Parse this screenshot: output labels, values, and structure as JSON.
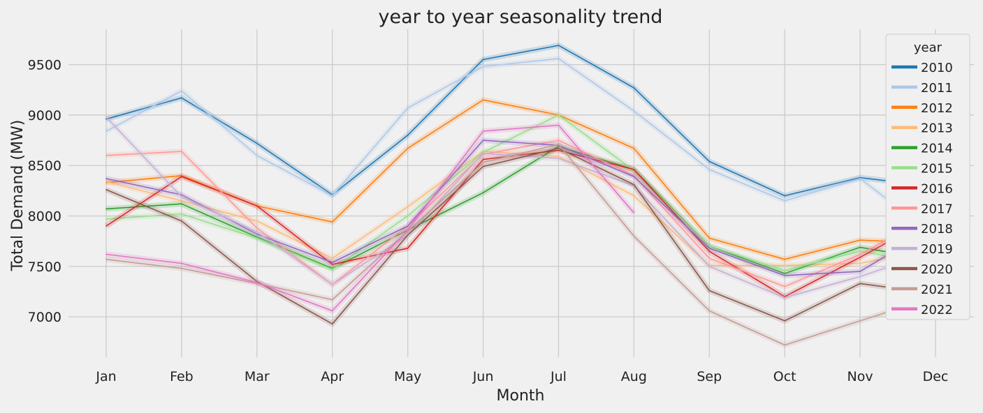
{
  "chart_data": {
    "type": "line",
    "title": "year to year seasonality trend",
    "xlabel": "Month",
    "ylabel": "Total Demand (MW)",
    "categories": [
      "Jan",
      "Feb",
      "Mar",
      "Apr",
      "May",
      "Jun",
      "Jul",
      "Aug",
      "Sep",
      "Oct",
      "Nov",
      "Dec"
    ],
    "ylim": [
      6600,
      9850
    ],
    "yticks": [
      7000,
      7500,
      8000,
      8500,
      9000,
      9500
    ],
    "grid": true,
    "legend_title": "year",
    "legend_position": "top-right",
    "series": [
      {
        "name": "2010",
        "color": "#1f77b4",
        "values": [
          8960,
          9170,
          8720,
          8210,
          8800,
          9550,
          9690,
          9270,
          8540,
          8200,
          8380,
          8290
        ]
      },
      {
        "name": "2011",
        "color": "#aec7e8",
        "values": [
          8840,
          9240,
          8600,
          8200,
          9070,
          9480,
          9560,
          9040,
          8460,
          8150,
          8370,
          7800
        ]
      },
      {
        "name": "2012",
        "color": "#ff7f0e",
        "values": [
          8330,
          8400,
          8100,
          7940,
          8670,
          9150,
          9000,
          8670,
          7780,
          7570,
          7760,
          7730
        ]
      },
      {
        "name": "2013",
        "color": "#ffbb78",
        "values": [
          8340,
          8150,
          7950,
          7580,
          8090,
          8640,
          8590,
          8200,
          7510,
          7510,
          7530,
          7680
        ]
      },
      {
        "name": "2014",
        "color": "#2ca02c",
        "values": [
          8070,
          8120,
          7790,
          7480,
          7860,
          8230,
          8690,
          8460,
          7700,
          7430,
          7690,
          7560
        ]
      },
      {
        "name": "2015",
        "color": "#98df8a",
        "values": [
          7970,
          8020,
          7780,
          7470,
          8000,
          8630,
          9000,
          8450,
          7700,
          7460,
          7650,
          7520
        ]
      },
      {
        "name": "2016",
        "color": "#d62728",
        "values": [
          7900,
          8390,
          8100,
          7520,
          7680,
          8560,
          8650,
          8460,
          7650,
          7200,
          7590,
          8000
        ]
      },
      {
        "name": "2017",
        "color": "#ff9896",
        "values": [
          8600,
          8640,
          7880,
          7320,
          7900,
          8610,
          8750,
          8400,
          7580,
          7300,
          7620,
          8030
        ]
      },
      {
        "name": "2018",
        "color": "#9467bd",
        "values": [
          8370,
          8210,
          7820,
          7540,
          7900,
          8750,
          8700,
          8390,
          7680,
          7410,
          7450,
          7900
        ]
      },
      {
        "name": "2019",
        "color": "#c5b0d5",
        "values": [
          8980,
          8190,
          7840,
          7320,
          7810,
          8620,
          8570,
          8300,
          7500,
          7190,
          7400,
          7650
        ]
      },
      {
        "name": "2020",
        "color": "#8c564b",
        "values": [
          8260,
          7950,
          7350,
          6930,
          7810,
          8490,
          8670,
          8310,
          7260,
          6960,
          7330,
          7230
        ]
      },
      {
        "name": "2021",
        "color": "#c49c94",
        "values": [
          7570,
          7480,
          7330,
          7170,
          7850,
          8530,
          8710,
          7800,
          7060,
          6720,
          6960,
          7200
        ]
      },
      {
        "name": "2022",
        "color": "#e377c2",
        "values": [
          7620,
          7530,
          7340,
          7060,
          7860,
          8840,
          8900,
          8030,
          null,
          null,
          null,
          null
        ]
      }
    ]
  }
}
